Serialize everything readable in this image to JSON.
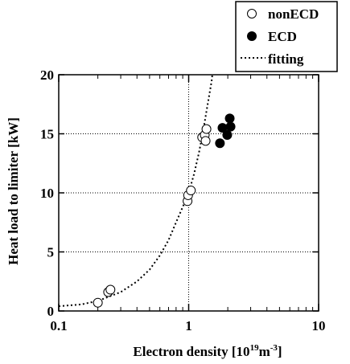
{
  "chart_data": {
    "type": "scatter",
    "xlabel": "Electron density",
    "xlabel_unit_prefix": " [10",
    "xlabel_unit_exp1": "19",
    "xlabel_unit_mid": "m",
    "xlabel_unit_exp2": "-3",
    "xlabel_unit_suffix": "]",
    "ylabel": "Heat load to limiter [kW]",
    "x_scale": "log",
    "xlim": [
      0.1,
      10
    ],
    "ylim": [
      0,
      20
    ],
    "x_ticks": [
      {
        "value": 0.1,
        "label": "0.1"
      },
      {
        "value": 1,
        "label": "1"
      },
      {
        "value": 10,
        "label": "10"
      }
    ],
    "y_ticks": [
      {
        "value": 0,
        "label": "0"
      },
      {
        "value": 5,
        "label": "5"
      },
      {
        "value": 10,
        "label": "10"
      },
      {
        "value": 15,
        "label": "15"
      },
      {
        "value": 20,
        "label": "20"
      }
    ],
    "grid": "dotted",
    "legend_position": "top-right",
    "series": [
      {
        "name": "nonECD",
        "marker": "open-circle",
        "color": "#000000",
        "points": [
          {
            "x": 0.2,
            "y": 0.7
          },
          {
            "x": 0.24,
            "y": 1.6
          },
          {
            "x": 0.25,
            "y": 1.8
          },
          {
            "x": 0.98,
            "y": 9.3
          },
          {
            "x": 0.99,
            "y": 9.8
          },
          {
            "x": 1.04,
            "y": 10.2
          },
          {
            "x": 1.27,
            "y": 14.7
          },
          {
            "x": 1.33,
            "y": 14.9
          },
          {
            "x": 1.35,
            "y": 14.4
          },
          {
            "x": 1.37,
            "y": 15.4
          }
        ]
      },
      {
        "name": "ECD",
        "marker": "filled-circle",
        "color": "#000000",
        "points": [
          {
            "x": 1.74,
            "y": 14.2
          },
          {
            "x": 1.82,
            "y": 15.5
          },
          {
            "x": 1.98,
            "y": 14.9
          },
          {
            "x": 2.07,
            "y": 16.3
          },
          {
            "x": 2.1,
            "y": 15.6
          }
        ]
      },
      {
        "name": "fitting",
        "marker": "dotted-line",
        "color": "#000000",
        "points": [
          {
            "x": 0.1,
            "y": 0.4
          },
          {
            "x": 0.15,
            "y": 0.56
          },
          {
            "x": 0.2,
            "y": 0.85
          },
          {
            "x": 0.3,
            "y": 1.6
          },
          {
            "x": 0.4,
            "y": 2.5
          },
          {
            "x": 0.5,
            "y": 3.5
          },
          {
            "x": 0.6,
            "y": 4.7
          },
          {
            "x": 0.7,
            "y": 6.0
          },
          {
            "x": 0.8,
            "y": 7.5
          },
          {
            "x": 0.9,
            "y": 8.8
          },
          {
            "x": 1.0,
            "y": 10.0
          },
          {
            "x": 1.1,
            "y": 11.6
          },
          {
            "x": 1.2,
            "y": 13.4
          },
          {
            "x": 1.3,
            "y": 15.4
          },
          {
            "x": 1.4,
            "y": 17.5
          },
          {
            "x": 1.5,
            "y": 19.4
          },
          {
            "x": 1.52,
            "y": 20.0
          }
        ]
      }
    ]
  }
}
